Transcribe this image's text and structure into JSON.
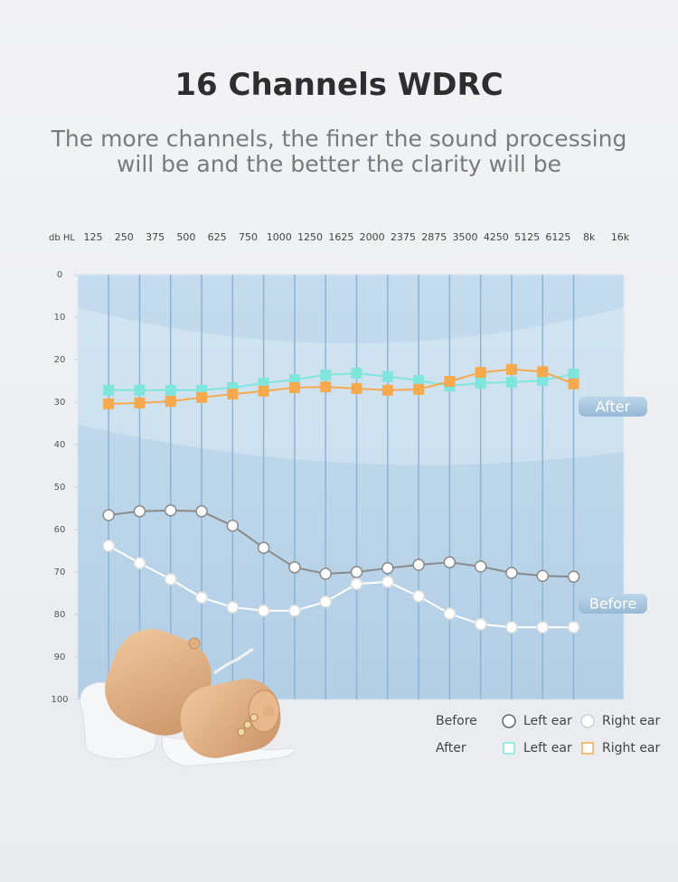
{
  "title": "16 Channels WDRC",
  "subtitle": "The more channels, the finer the sound processing will be and the better the clarity will be",
  "chart_data": {
    "type": "line",
    "axis_label": "db HL",
    "categories": [
      "125",
      "250",
      "375",
      "500",
      "625",
      "750",
      "1000",
      "1250",
      "1625",
      "2000",
      "2375",
      "2875",
      "3500",
      "4250",
      "5125",
      "6125",
      "8k",
      "16k"
    ],
    "ylim": [
      0,
      100
    ],
    "y_reversed": true,
    "yticks": [
      0,
      10,
      20,
      30,
      40,
      50,
      60,
      70,
      80,
      90,
      100
    ],
    "annotations": [
      "After",
      "Before"
    ],
    "series_groups": [
      {
        "name": "Before",
        "series": [
          {
            "name": "Left ear",
            "color": "#8a8a8a",
            "marker": "circle",
            "values": [
              56.6,
              55.7,
              55.5,
              55.7,
              59.1,
              64.3,
              68.9,
              70.4,
              70,
              69.1,
              68.3,
              67.7,
              68.7,
              70.2,
              70.9,
              71.1
            ]
          },
          {
            "name": "Right ear",
            "color": "#ffffff",
            "marker": "circle",
            "values": [
              63.8,
              67.9,
              71.7,
              76,
              78.3,
              79.1,
              79.1,
              77,
              72.8,
              72.3,
              75.7,
              79.8,
              82.3,
              83,
              83,
              83
            ]
          }
        ]
      },
      {
        "name": "After",
        "series": [
          {
            "name": "Left ear",
            "color": "#7fe6de",
            "marker": "square",
            "values": [
              27.2,
              27.2,
              27.2,
              27.2,
              26.6,
              25.5,
              24.7,
              23.6,
              23.2,
              24,
              24.9,
              26.2,
              25.5,
              25.3,
              24.9,
              23.4
            ]
          },
          {
            "name": "Right ear",
            "color": "#f7a94e",
            "marker": "square",
            "values": [
              30.4,
              30.2,
              29.8,
              28.9,
              28.1,
              27.4,
              26.6,
              26.4,
              26.8,
              27.2,
              27,
              25.1,
              23,
              22.3,
              22.8,
              25.7
            ]
          }
        ]
      }
    ]
  }
}
